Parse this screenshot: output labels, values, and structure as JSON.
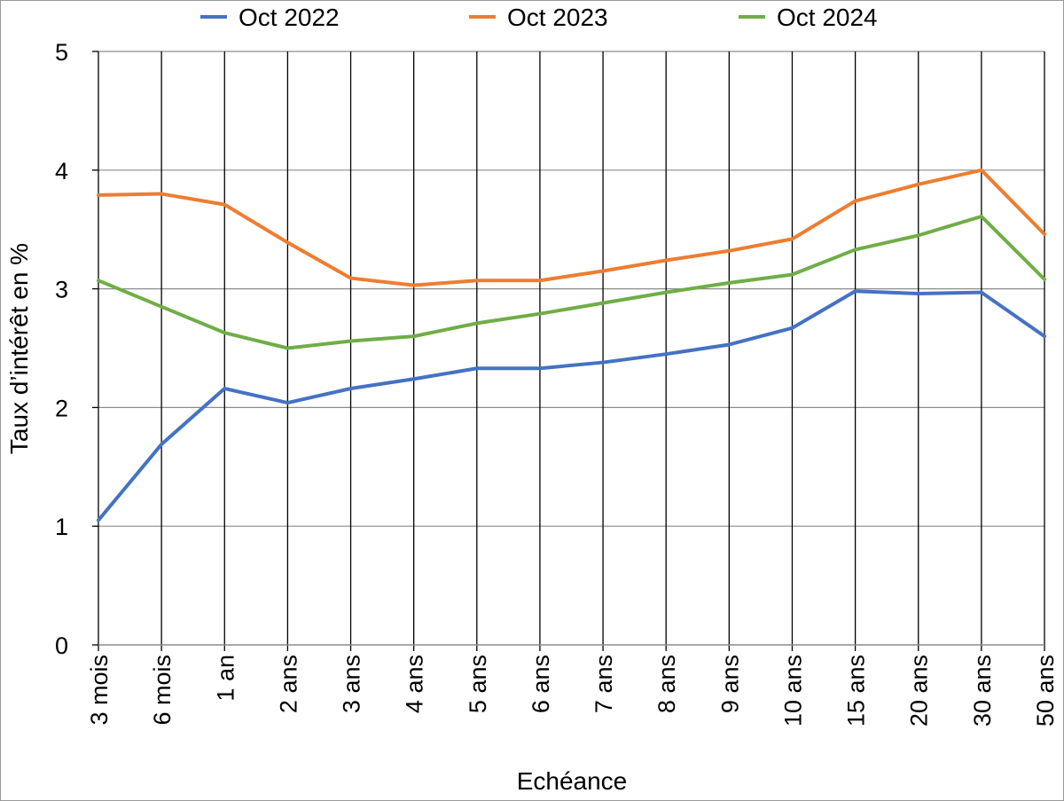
{
  "chart_data": {
    "type": "line",
    "title": "",
    "xlabel": "Echéance",
    "ylabel": "Taux d’intérêt en %",
    "categories": [
      "3 mois",
      "6 mois",
      "1 an",
      "2 ans",
      "3 ans",
      "4 ans",
      "5 ans",
      "6 ans",
      "7 ans",
      "8 ans",
      "9 ans",
      "10 ans",
      "15 ans",
      "20 ans",
      "30 ans",
      "50 ans"
    ],
    "ylim": [
      0,
      5
    ],
    "yticks": [
      "0",
      "1",
      "2",
      "3",
      "4",
      "5"
    ],
    "grid": true,
    "legend_position": "top",
    "series": [
      {
        "name": "Oct 2022",
        "color": "#4472C4",
        "values": [
          1.05,
          1.69,
          2.16,
          2.04,
          2.16,
          2.24,
          2.33,
          2.33,
          2.38,
          2.45,
          2.53,
          2.67,
          2.98,
          2.96,
          2.97,
          2.6
        ]
      },
      {
        "name": "Oct 2023",
        "color": "#ED7D31",
        "values": [
          3.79,
          3.8,
          3.71,
          3.39,
          3.09,
          3.03,
          3.07,
          3.07,
          3.15,
          3.24,
          3.32,
          3.42,
          3.74,
          3.88,
          4.0,
          3.46
        ]
      },
      {
        "name": "Oct 2024",
        "color": "#70AD47",
        "values": [
          3.07,
          2.85,
          2.63,
          2.5,
          2.56,
          2.6,
          2.71,
          2.79,
          2.88,
          2.97,
          3.05,
          3.12,
          3.33,
          3.45,
          3.61,
          3.08
        ]
      }
    ]
  }
}
